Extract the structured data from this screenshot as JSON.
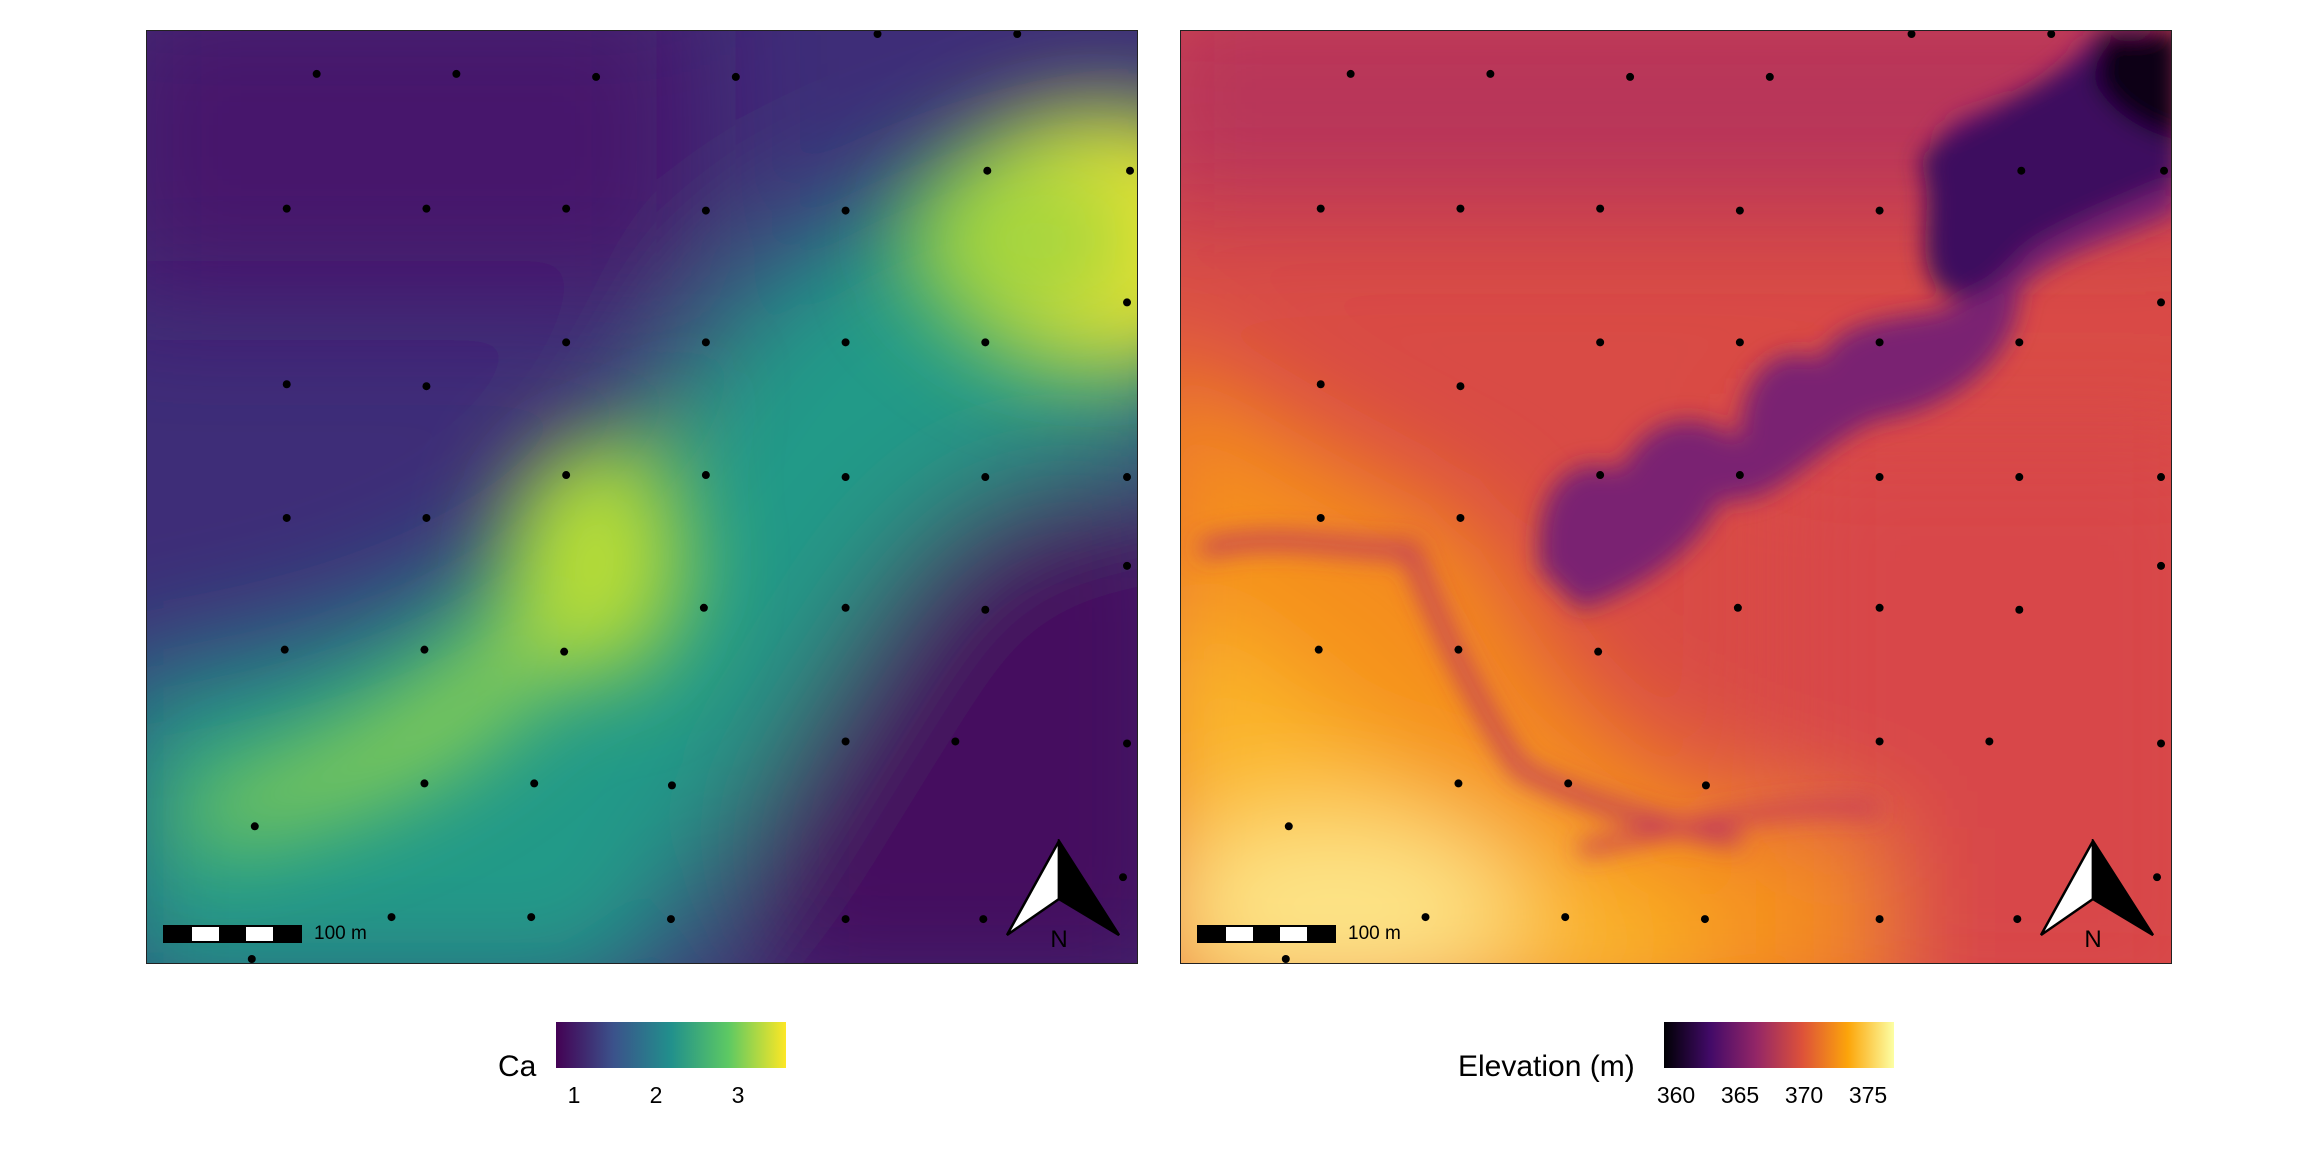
{
  "maps": [
    {
      "variable": "Ca",
      "palette": "viridis",
      "scalebar_label": "100 m",
      "north_label": "N"
    },
    {
      "variable": "Elevation (m)",
      "palette": "inferno",
      "scalebar_label": "100 m",
      "north_label": "N"
    }
  ],
  "legends": {
    "ca": {
      "title": "Ca",
      "ticks": [
        "1",
        "2",
        "3"
      ],
      "colors": [
        "#440154",
        "#3b528b",
        "#21908c",
        "#5dc963",
        "#fde725"
      ]
    },
    "elevation": {
      "title": "Elevation (m)",
      "ticks": [
        "360",
        "365",
        "370",
        "375"
      ],
      "colors": [
        "#000004",
        "#420a68",
        "#932667",
        "#dd513a",
        "#fca50a",
        "#fcffa4"
      ]
    }
  },
  "colors": {
    "point_color": "#000000",
    "frame_color": "#222222",
    "background": "#ffffff"
  }
}
